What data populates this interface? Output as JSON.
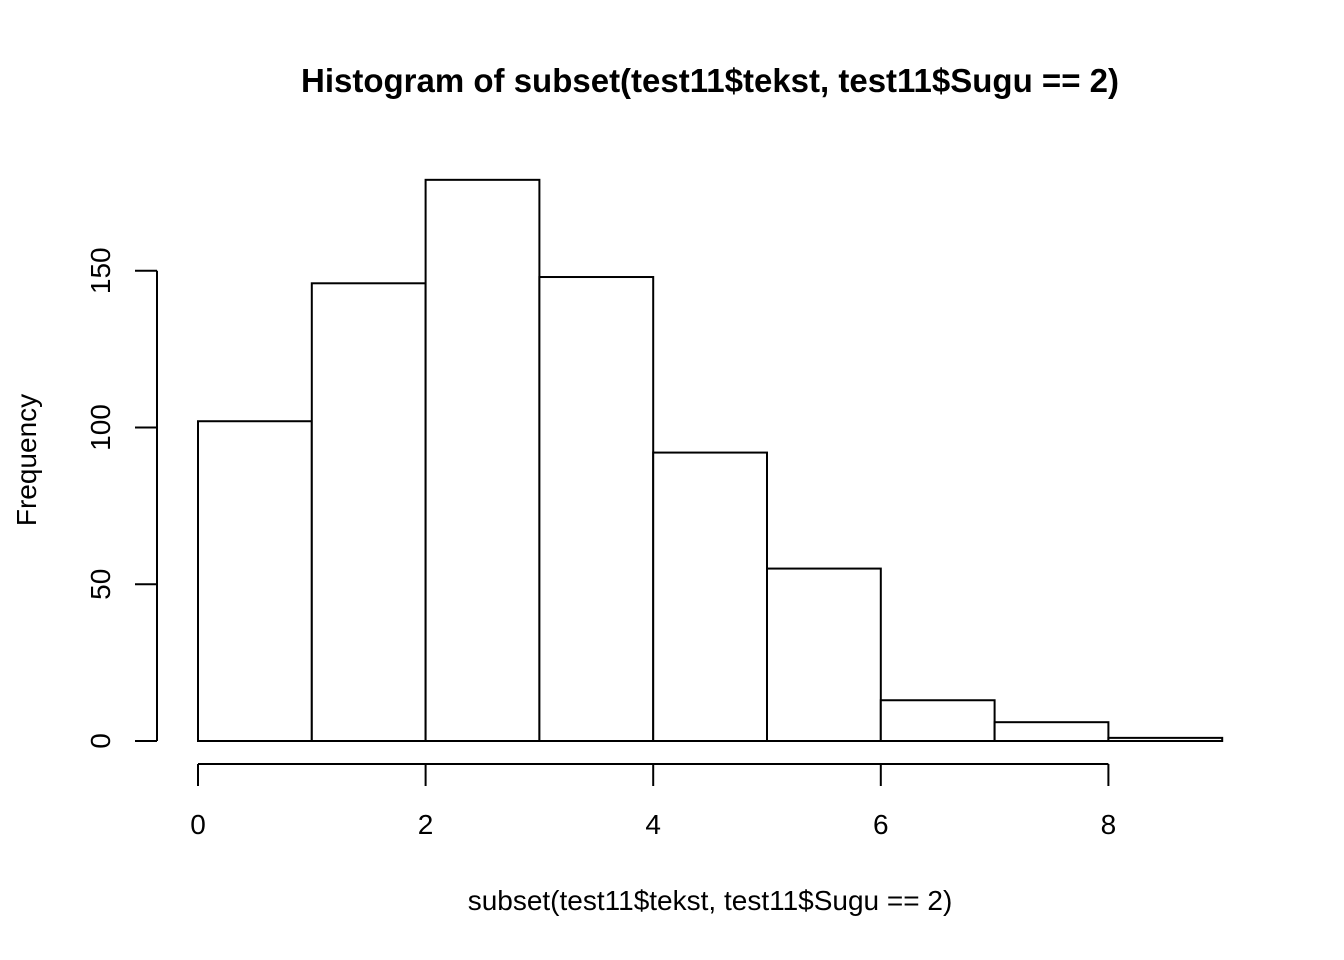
{
  "chart_data": {
    "type": "bar",
    "title": "Histogram of subset(test11$tekst, test11$Sugu == 2)",
    "xlabel": "subset(test11$tekst, test11$Sugu == 2)",
    "ylabel": "Frequency",
    "bins": [
      {
        "from": 0,
        "to": 1,
        "count": 102
      },
      {
        "from": 1,
        "to": 2,
        "count": 146
      },
      {
        "from": 2,
        "to": 3,
        "count": 179
      },
      {
        "from": 3,
        "to": 4,
        "count": 148
      },
      {
        "from": 4,
        "to": 5,
        "count": 92
      },
      {
        "from": 5,
        "to": 6,
        "count": 55
      },
      {
        "from": 6,
        "to": 7,
        "count": 13
      },
      {
        "from": 7,
        "to": 8,
        "count": 6
      },
      {
        "from": 8,
        "to": 9,
        "count": 1
      }
    ],
    "x_ticks": [
      0,
      2,
      4,
      6,
      8
    ],
    "y_ticks": [
      0,
      50,
      100,
      150
    ],
    "xlim": [
      0,
      9
    ],
    "ylim": [
      0,
      179
    ],
    "grid": false,
    "bar_fill": "#ffffff",
    "bar_stroke": "#000000"
  }
}
